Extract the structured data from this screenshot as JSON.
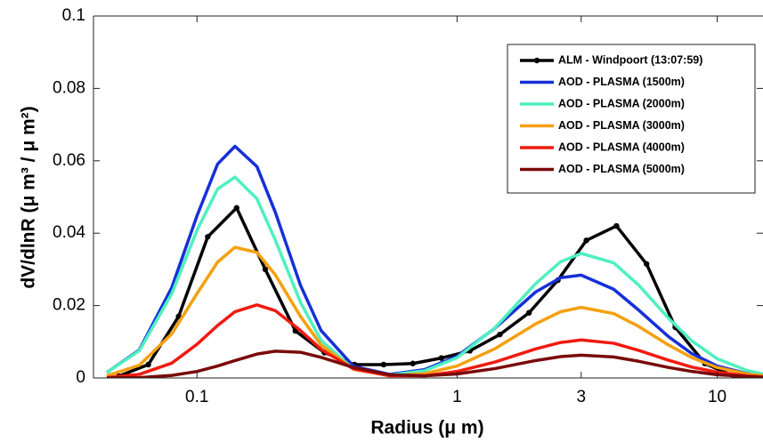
{
  "chart_data": {
    "type": "line",
    "xlabel": "Radius (μ m)",
    "ylabel": "dV/dlnR (μ m³ / μ m²)",
    "xscale": "log",
    "xlim": [
      0.04,
      15
    ],
    "xticks": [
      0.1,
      1,
      3,
      10
    ],
    "ylim": [
      0,
      0.1
    ],
    "yticks": [
      0,
      0.02,
      0.04,
      0.06,
      0.08,
      0.1
    ],
    "grid": false,
    "legend": "upper right",
    "series": [
      {
        "name": "ALM - Windpoort (13:07:59)",
        "color": "#000000",
        "marker": true,
        "x": [
          0.05,
          0.065,
          0.085,
          0.11,
          0.142,
          0.183,
          0.239,
          0.309,
          0.403,
          0.522,
          0.676,
          0.87,
          1.12,
          1.46,
          1.89,
          2.44,
          3.14,
          4.1,
          5.35,
          6.9,
          8.97,
          11.6
        ],
        "values": [
          0.0005,
          0.0037,
          0.017,
          0.039,
          0.047,
          0.03,
          0.013,
          0.007,
          0.0037,
          0.0037,
          0.004,
          0.0055,
          0.0075,
          0.012,
          0.018,
          0.027,
          0.038,
          0.042,
          0.0315,
          0.014,
          0.004,
          0.0005
        ]
      },
      {
        "name": "AOD - PLASMA (1500m)",
        "color": "#1530d8",
        "x": [
          0.045,
          0.06,
          0.08,
          0.1,
          0.12,
          0.14,
          0.17,
          0.2,
          0.25,
          0.3,
          0.4,
          0.55,
          0.75,
          1,
          1.4,
          2,
          2.5,
          3,
          4,
          5,
          6.5,
          8,
          10,
          13,
          15
        ],
        "values": [
          0.0015,
          0.0077,
          0.025,
          0.0448,
          0.0591,
          0.064,
          0.0584,
          0.0458,
          0.0256,
          0.0131,
          0.0032,
          0.001,
          0.0023,
          0.006,
          0.0138,
          0.0237,
          0.0277,
          0.0284,
          0.0245,
          0.0187,
          0.0114,
          0.0067,
          0.0033,
          0.0012,
          0.0007
        ]
      },
      {
        "name": "AOD - PLASMA (2000m)",
        "color": "#4ff0c0",
        "x": [
          0.045,
          0.06,
          0.08,
          0.1,
          0.12,
          0.14,
          0.17,
          0.2,
          0.25,
          0.3,
          0.4,
          0.55,
          0.75,
          1,
          1.4,
          2,
          2.5,
          3,
          4,
          5,
          6.5,
          8,
          10,
          13,
          15
        ],
        "values": [
          0.0015,
          0.0075,
          0.0233,
          0.0408,
          0.0522,
          0.0555,
          0.0495,
          0.0381,
          0.0209,
          0.0104,
          0.0024,
          0.0008,
          0.002,
          0.0056,
          0.0139,
          0.026,
          0.0321,
          0.0344,
          0.0318,
          0.0256,
          0.0165,
          0.0102,
          0.0053,
          0.0021,
          0.0011
        ]
      },
      {
        "name": "AOD - PLASMA (3000m)",
        "color": "#f5a00f",
        "x": [
          0.045,
          0.06,
          0.08,
          0.1,
          0.12,
          0.14,
          0.17,
          0.2,
          0.25,
          0.3,
          0.4,
          0.55,
          0.75,
          1,
          1.4,
          2,
          2.5,
          3,
          4,
          5,
          6.5,
          8,
          10,
          13,
          15
        ],
        "values": [
          0.0006,
          0.0035,
          0.0122,
          0.0233,
          0.032,
          0.0361,
          0.0347,
          0.0285,
          0.017,
          0.0091,
          0.0024,
          0.0006,
          0.0012,
          0.0033,
          0.0081,
          0.0149,
          0.0183,
          0.0195,
          0.0178,
          0.0142,
          0.0091,
          0.0056,
          0.0029,
          0.0011,
          0.0006
        ]
      },
      {
        "name": "AOD - PLASMA (4000m)",
        "color": "#f01a10",
        "x": [
          0.045,
          0.06,
          0.08,
          0.1,
          0.12,
          0.14,
          0.17,
          0.2,
          0.25,
          0.3,
          0.4,
          0.55,
          0.75,
          1,
          1.4,
          2,
          2.5,
          3,
          4,
          5,
          6.5,
          8,
          10,
          13,
          15
        ],
        "values": [
          0.0001,
          0.001,
          0.0041,
          0.0093,
          0.0145,
          0.0183,
          0.0202,
          0.0186,
          0.0131,
          0.0079,
          0.0025,
          0.0006,
          0.0006,
          0.0018,
          0.0044,
          0.008,
          0.0098,
          0.0105,
          0.0096,
          0.0076,
          0.0049,
          0.003,
          0.0016,
          0.0006,
          0.0003
        ]
      },
      {
        "name": "AOD - PLASMA (5000m)",
        "color": "#7a0a0a",
        "x": [
          0.045,
          0.06,
          0.08,
          0.1,
          0.12,
          0.14,
          0.17,
          0.2,
          0.25,
          0.3,
          0.4,
          0.55,
          0.75,
          1,
          1.4,
          2,
          2.5,
          3,
          4,
          5,
          6.5,
          8,
          10,
          13,
          15
        ],
        "values": [
          0,
          0.0001,
          0.0007,
          0.0018,
          0.0033,
          0.0048,
          0.0066,
          0.0074,
          0.0071,
          0.0057,
          0.0029,
          0.0009,
          0.0006,
          0.0011,
          0.0026,
          0.0048,
          0.0059,
          0.0063,
          0.0058,
          0.0046,
          0.0029,
          0.0018,
          0.0009,
          0.0004,
          0.0002
        ]
      }
    ]
  }
}
